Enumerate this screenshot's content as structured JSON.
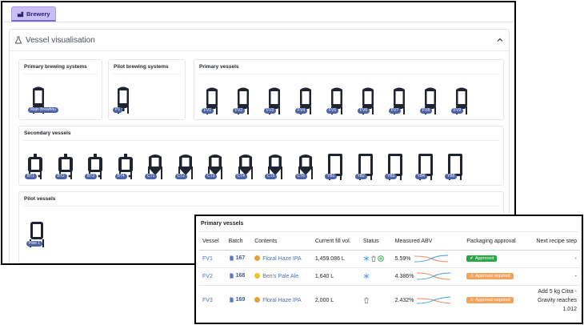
{
  "tabs": [
    {
      "label": "Brewery"
    }
  ],
  "panel": {
    "title": "Vessel visualisation"
  },
  "sections": {
    "primary_brewing": {
      "title": "Primary brewing systems",
      "vessels": [
        "Main Brewhou"
      ]
    },
    "pilot_brewing": {
      "title": "Pilot brewing systems",
      "vessels": [
        "P1"
      ]
    },
    "primary_vessels": {
      "title": "Primary vessels",
      "vessels": [
        "FV1",
        "FV2",
        "FV3",
        "FV4",
        "FV5",
        "FV6",
        "FV7",
        "FV8",
        "FV9"
      ]
    },
    "secondary_vessels": {
      "title": "Secondary vessels",
      "vessels": [
        "BT1",
        "BT2",
        "BT3",
        "BT4",
        "CT1",
        "CT2",
        "CT3",
        "CT4",
        "CT5",
        "CT6",
        "YB1",
        "YB2",
        "YB3",
        "YB4",
        "YB5"
      ]
    },
    "pilot_vessels": {
      "title": "Pilot vessels",
      "vessels": [
        "Pilot 1"
      ]
    }
  },
  "table_panel": {
    "title": "Primary vessels",
    "columns": [
      "Vessel",
      "Batch",
      "Contents",
      "Current fill vol.",
      "Status",
      "Measured ABV",
      "Packaging approval",
      "Next recipe step"
    ],
    "rows": [
      {
        "vessel": "FV1",
        "batch": "167",
        "contents": "Floral Haze IPA",
        "contents_color": "#e0a43c",
        "fill": "1,459.086 L",
        "abv": "5.59%",
        "approval": "Approved",
        "approval_kind": "green",
        "next": [
          "-"
        ]
      },
      {
        "vessel": "FV2",
        "batch": "168",
        "contents": "Ben's Pale Ale",
        "contents_color": "#f2c230",
        "fill": "1,640 L",
        "abv": "4.386%",
        "approval": "Approval required",
        "approval_kind": "orange",
        "next": [
          "-"
        ]
      },
      {
        "vessel": "FV3",
        "batch": "169",
        "contents": "Floral Haze IPA",
        "contents_color": "#e0a43c",
        "fill": "2,000 L",
        "abv": "2.432%",
        "approval": "Approval required",
        "approval_kind": "orange",
        "next": [
          "Add 5 kg Citra -",
          "Gravity reaches",
          "1.012"
        ]
      }
    ]
  },
  "colors": {
    "accent": "#4e64a6",
    "tab": "#c9bff2",
    "approved": "#28a745",
    "required": "#f7a25a"
  }
}
